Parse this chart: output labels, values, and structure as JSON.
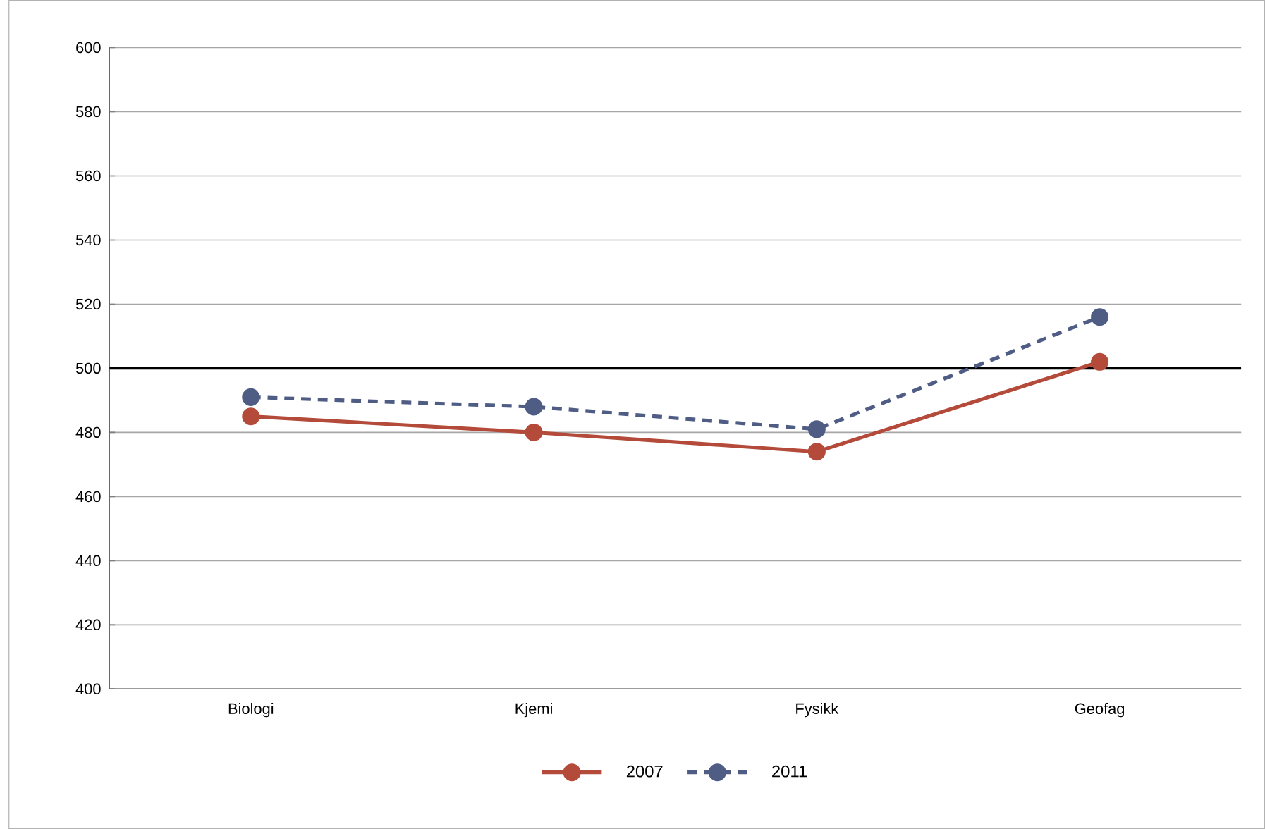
{
  "chart_data": {
    "type": "line",
    "categories": [
      "Biologi",
      "Kjemi",
      "Fysikk",
      "Geofag"
    ],
    "series": [
      {
        "name": "2007",
        "color": "#b34a3a",
        "values": [
          485,
          480,
          474,
          502
        ],
        "line_style": "solid"
      },
      {
        "name": "2011",
        "color": "#4f5d85",
        "values": [
          491,
          488,
          481,
          516
        ],
        "line_style": "dashed"
      }
    ],
    "ylim": [
      400,
      600
    ],
    "yticks": [
      400,
      420,
      440,
      460,
      480,
      500,
      520,
      540,
      560,
      580,
      600
    ],
    "grid": "y",
    "legend": "bottom",
    "marker": "circle",
    "ref_lines": [
      {
        "axis": "y",
        "value": 500,
        "color": "#000000"
      }
    ]
  }
}
